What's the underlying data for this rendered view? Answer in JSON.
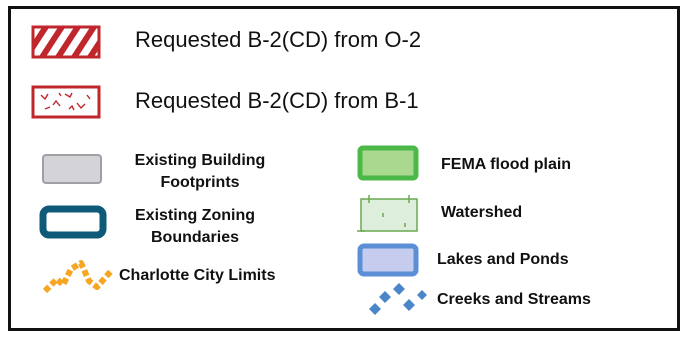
{
  "legend": {
    "items": {
      "b2_from_o2": {
        "label": "Requested B-2(CD) from O-2",
        "symbol": "red-hatched-rectangle-icon",
        "color": "#c0272d"
      },
      "b2_from_b1": {
        "label": "Requested B-2(CD) from B-1",
        "symbol": "red-dotted-rectangle-icon",
        "color": "#c0272d"
      },
      "building_footprints": {
        "label_line1": "Existing Building",
        "label_line2": "Footprints",
        "symbol": "gray-rectangle-icon",
        "color": "#d4d4d8"
      },
      "zoning_boundaries": {
        "label_line1": "Existing Zoning",
        "label_line2": "Boundaries",
        "symbol": "teal-outline-rectangle-icon",
        "color": "#0e5a78"
      },
      "city_limits": {
        "label": "Charlotte City Limits",
        "symbol": "orange-dashed-zigzag-icon",
        "color": "#f5a623"
      },
      "fema_flood_plain": {
        "label": "FEMA flood plain",
        "symbol": "green-rectangle-icon",
        "color": "#4cb847"
      },
      "watershed": {
        "label": "Watershed",
        "symbol": "light-green-rectangle-icon",
        "color": "#6aa84f"
      },
      "lakes_ponds": {
        "label": "Lakes and Ponds",
        "symbol": "blue-rectangle-icon",
        "color": "#5b8fd6"
      },
      "creeks_streams": {
        "label": "Creeks and Streams",
        "symbol": "blue-diamonds-icon",
        "color": "#4a86c8"
      }
    }
  }
}
